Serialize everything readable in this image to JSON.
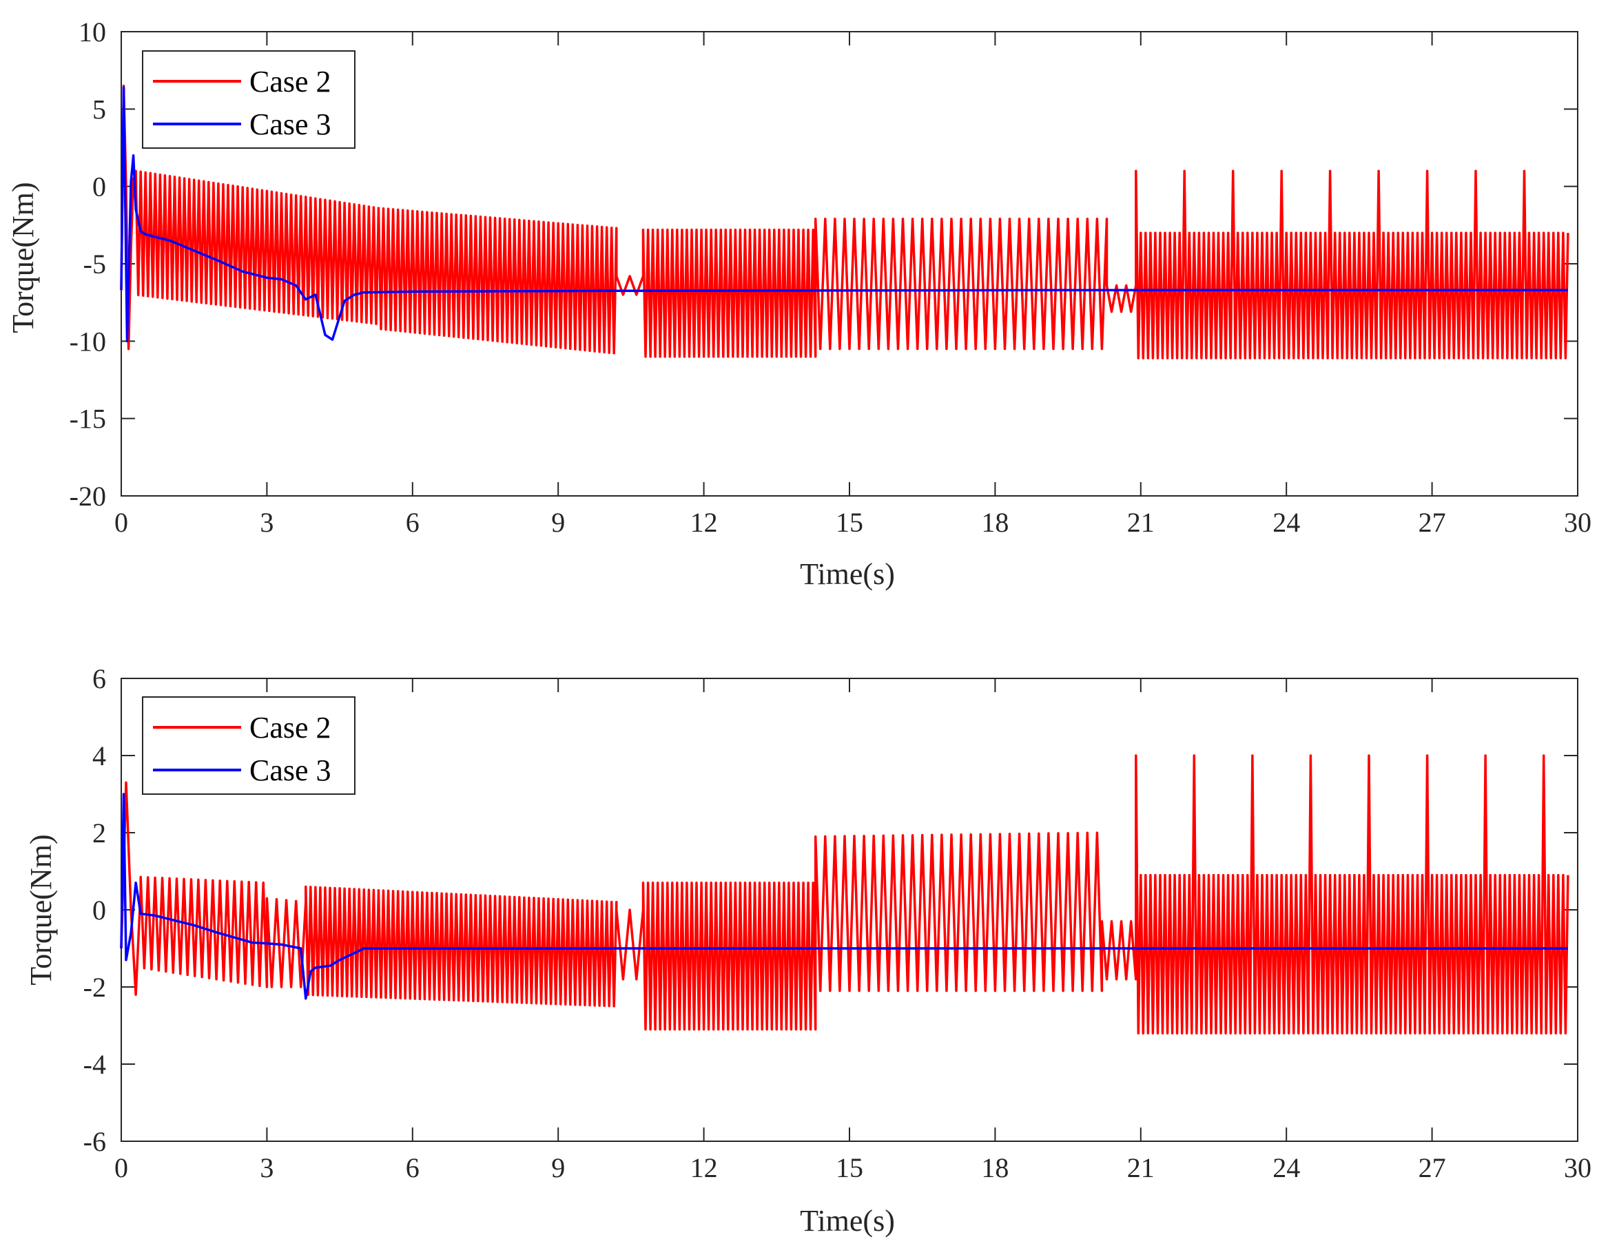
{
  "chart_data": [
    {
      "type": "line",
      "title": "",
      "xlabel": "Time(s)",
      "ylabel": "Torque(Nm)",
      "xlim": [
        0,
        30
      ],
      "ylim": [
        -20,
        10
      ],
      "xticks": [
        0,
        3,
        6,
        9,
        12,
        15,
        18,
        21,
        24,
        27,
        30
      ],
      "yticks": [
        -20,
        -15,
        -10,
        -5,
        0,
        5,
        10
      ],
      "legend_position": "top-left",
      "series": [
        {
          "name": "Case 2",
          "color": "#ff0000",
          "description": "oscillating torque with changing frequency and amplitude",
          "segments": [
            {
              "t": [
                0.3,
                5.3
              ],
              "upper": [
                1.0,
                -1.4
              ],
              "lower": [
                -7.0,
                -8.9
              ],
              "period": 0.1
            },
            {
              "t": [
                5.3,
                10.2
              ],
              "upper": [
                -1.4,
                -2.7
              ],
              "lower": [
                -9.2,
                -10.8
              ],
              "period": 0.1
            },
            {
              "t": [
                10.2,
                10.75
              ],
              "upper": [
                -5.8,
                -5.8
              ],
              "lower": [
                -7.0,
                -7.0
              ],
              "period": 0.25
            },
            {
              "t": [
                10.75,
                14.3
              ],
              "upper": [
                -2.8,
                -2.8
              ],
              "lower": [
                -11.0,
                -11.0
              ],
              "period": 0.1
            },
            {
              "t": [
                14.3,
                20.3
              ],
              "upper": [
                -2.1,
                -2.1
              ],
              "lower": [
                -10.5,
                -10.5
              ],
              "period": 0.2
            },
            {
              "t": [
                20.3,
                20.9
              ],
              "upper": [
                -6.4,
                -6.4
              ],
              "lower": [
                -8.1,
                -8.1
              ],
              "period": 0.2
            },
            {
              "t": [
                20.9,
                29.8
              ],
              "upper": [
                -3.0,
                -3.0
              ],
              "lower": [
                -11.1,
                -11.1
              ],
              "period": 0.1,
              "spike_peak": 1.0,
              "spike_period": 1.0
            }
          ],
          "start_transient": {
            "t": [
              0,
              0.05,
              0.1,
              0.15,
              0.2,
              0.25,
              0.3
            ],
            "y": [
              -6.7,
              6.5,
              0.0,
              -10.5,
              -4.0,
              0.5,
              -1.0
            ]
          }
        },
        {
          "name": "Case 3",
          "color": "#0000ff",
          "x": [
            0.0,
            0.05,
            0.12,
            0.2,
            0.25,
            0.3,
            0.4,
            0.5,
            1.0,
            2.0,
            2.5,
            3.0,
            3.3,
            3.6,
            3.8,
            4.0,
            4.2,
            4.35,
            4.6,
            4.8,
            5.0,
            6.0,
            10.0,
            20.0,
            29.8
          ],
          "y": [
            -6.7,
            6.4,
            -10.0,
            0.3,
            2.0,
            -1.5,
            -2.9,
            -3.1,
            -3.5,
            -4.8,
            -5.5,
            -5.9,
            -6.0,
            -6.4,
            -7.3,
            -7.0,
            -9.6,
            -9.9,
            -7.4,
            -7.0,
            -6.85,
            -6.8,
            -6.75,
            -6.7,
            -6.7
          ]
        }
      ]
    },
    {
      "type": "line",
      "title": "",
      "xlabel": "Time(s)",
      "ylabel": "Torque(Nm)",
      "xlim": [
        0,
        30
      ],
      "ylim": [
        -6,
        6
      ],
      "xticks": [
        0,
        3,
        6,
        9,
        12,
        15,
        18,
        21,
        24,
        27,
        30
      ],
      "yticks": [
        -6,
        -4,
        -2,
        0,
        2,
        4,
        6
      ],
      "legend_position": "top-left",
      "series": [
        {
          "name": "Case 2",
          "color": "#ff0000",
          "description": "oscillating torque with changing frequency and amplitude",
          "segments": [
            {
              "t": [
                0.4,
                3.0
              ],
              "upper": [
                0.85,
                0.7
              ],
              "lower": [
                -1.5,
                -2.0
              ],
              "period": 0.15
            },
            {
              "t": [
                3.0,
                3.8
              ],
              "upper": [
                0.3,
                0.2
              ],
              "lower": [
                -2.0,
                -2.0
              ],
              "period": 0.2
            },
            {
              "t": [
                3.8,
                10.2
              ],
              "upper": [
                0.6,
                0.2
              ],
              "lower": [
                -2.2,
                -2.5
              ],
              "period": 0.1
            },
            {
              "t": [
                10.2,
                10.75
              ],
              "upper": [
                0.0,
                0.0
              ],
              "lower": [
                -1.8,
                -1.8
              ],
              "period": 0.25
            },
            {
              "t": [
                10.75,
                14.3
              ],
              "upper": [
                0.7,
                0.7
              ],
              "lower": [
                -3.1,
                -3.1
              ],
              "period": 0.1
            },
            {
              "t": [
                14.3,
                20.2
              ],
              "upper": [
                1.9,
                2.0
              ],
              "lower": [
                -2.1,
                -2.1
              ],
              "period": 0.2
            },
            {
              "t": [
                20.2,
                20.9
              ],
              "upper": [
                -0.3,
                -0.3
              ],
              "lower": [
                -1.8,
                -1.8
              ],
              "period": 0.2
            },
            {
              "t": [
                20.9,
                29.8
              ],
              "upper": [
                0.9,
                0.9
              ],
              "lower": [
                -3.2,
                -3.2
              ],
              "period": 0.1,
              "spike_peak": 4.0,
              "spike_period": 1.2
            }
          ],
          "start_transient": {
            "t": [
              0,
              0.1,
              0.2,
              0.3,
              0.4
            ],
            "y": [
              -1.0,
              3.3,
              0.0,
              -2.2,
              0.5
            ]
          }
        },
        {
          "name": "Case 3",
          "color": "#0000ff",
          "x": [
            0.0,
            0.05,
            0.1,
            0.2,
            0.3,
            0.4,
            0.7,
            1.5,
            2.0,
            2.7,
            3.0,
            3.3,
            3.5,
            3.7,
            3.8,
            3.9,
            4.0,
            4.3,
            4.5,
            5.0,
            6.0,
            10.0,
            20.0,
            29.8
          ],
          "y": [
            -1.0,
            3.0,
            -1.3,
            -0.6,
            0.7,
            -0.1,
            -0.15,
            -0.4,
            -0.6,
            -0.85,
            -0.87,
            -0.9,
            -0.95,
            -1.0,
            -2.3,
            -1.6,
            -1.5,
            -1.45,
            -1.3,
            -1.0,
            -1.0,
            -1.0,
            -1.0,
            -1.0
          ]
        }
      ]
    }
  ]
}
